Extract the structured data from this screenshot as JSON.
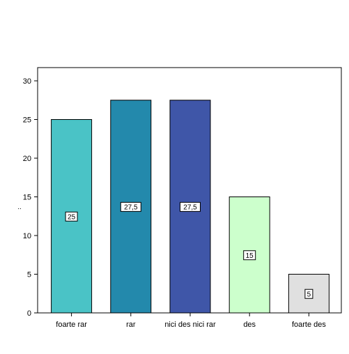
{
  "chart_data": {
    "type": "bar",
    "title": "",
    "xlabel": "",
    "ylabel": "..",
    "categories": [
      "foarte rar",
      "rar",
      "nici des nici rar",
      "des",
      "foarte des"
    ],
    "values": [
      25,
      27.5,
      27.5,
      15,
      5
    ],
    "data_labels": [
      "25",
      "27,5",
      "27,5",
      "15",
      "5"
    ],
    "ylim": [
      0,
      30
    ],
    "yticks": [
      0,
      5,
      10,
      15,
      20,
      25,
      30
    ],
    "colors": [
      "#4ac3c6",
      "#2389ac",
      "#3f56a8",
      "#ccffcc",
      "#e0e0e0"
    ],
    "grid": false,
    "legend": "none"
  }
}
